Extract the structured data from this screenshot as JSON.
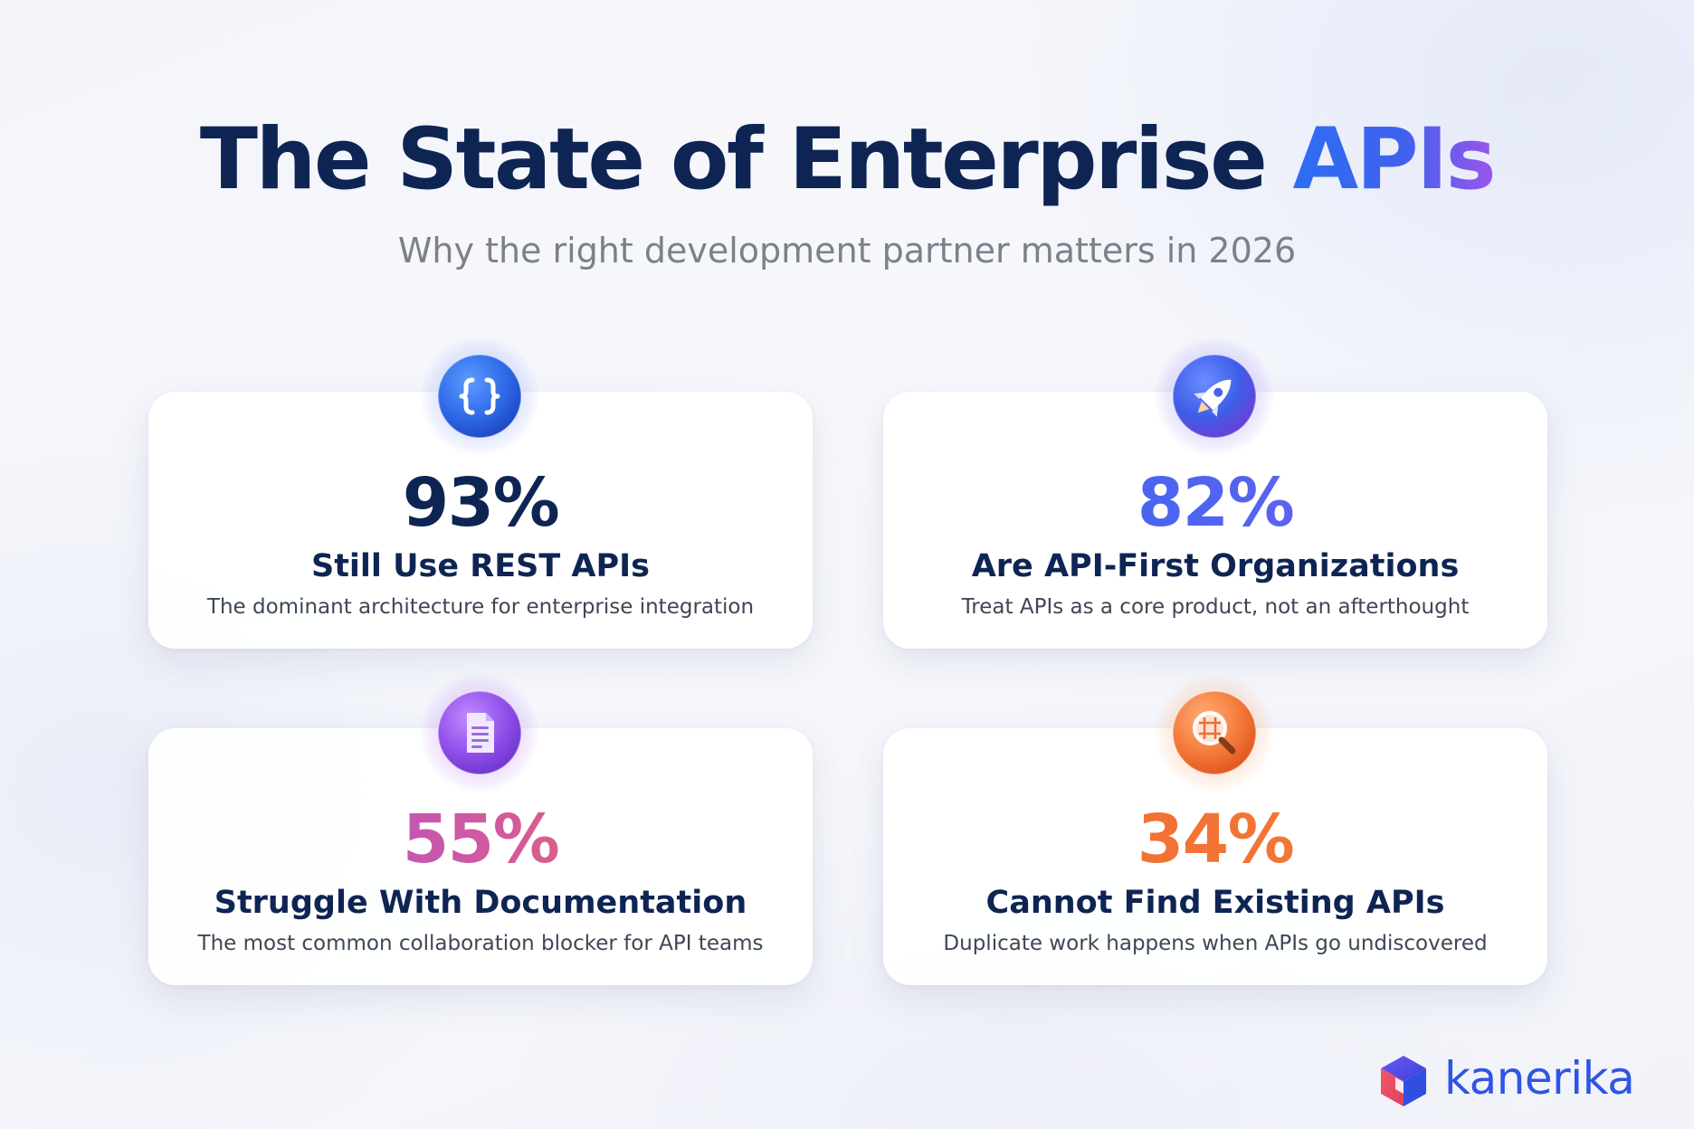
{
  "header": {
    "title_main": "The State of Enterprise ",
    "title_accent": "APIs",
    "subtitle": "Why the right development partner matters in 2026"
  },
  "stats": [
    {
      "value": "93%",
      "heading": "Still Use REST APIs",
      "description": "The dominant architecture for enterprise integration",
      "icon": "code-braces-icon",
      "color": "#2f6df0"
    },
    {
      "value": "82%",
      "heading": "Are API-First Organizations",
      "description": "Treat APIs as a core product, not an afterthought",
      "icon": "rocket-icon",
      "color": "#5a5cf0"
    },
    {
      "value": "55%",
      "heading": "Struggle With Documentation",
      "description": "The most common collaboration blocker for API teams",
      "icon": "document-icon",
      "color": "#a050e8"
    },
    {
      "value": "34%",
      "heading": "Cannot Find Existing APIs",
      "description": "Duplicate work happens when APIs go undiscovered",
      "icon": "magnifier-grid-icon",
      "color": "#f26d2f"
    }
  ],
  "brand": {
    "name": "kanerika",
    "logo_icon": "cube-logo-icon",
    "color": "#2f55e4"
  },
  "colors": {
    "navy": "#0e2554",
    "blue": "#2d6df3",
    "purple": "#9a55ea",
    "orange": "#f26d2f"
  }
}
